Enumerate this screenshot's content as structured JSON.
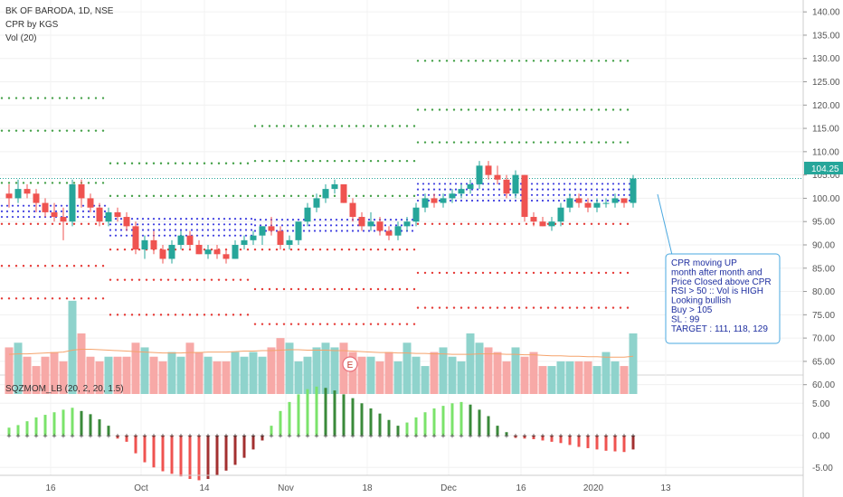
{
  "header": {
    "symbol": "BK OF BARODA, 1D, NSE",
    "indicator_1": "CPR by KGS",
    "indicator_2": "Vol (20)",
    "indicator_3": "SQZMOM_LB (20, 2, 20, 1.5)"
  },
  "price_tag": {
    "value": "104.25",
    "color": "#26a69a"
  },
  "earnings_badge": "E",
  "annotation": {
    "lines": [
      "CPR moving UP",
      "month after month and",
      "Price Closed above CPR",
      "RSI > 50 :: Vol is HIGH",
      "Looking  bullish",
      "Buy > 105",
      "SL : 99",
      "TARGET : 111, 118, 129"
    ]
  },
  "colors": {
    "up": "#26a69a",
    "down": "#ef5350",
    "vol_up": "#8fd3cc",
    "vol_down": "#f7a9a7",
    "resistance": "#43a047",
    "support": "#e53935",
    "cpr": "#3f3fe0",
    "volume_ma": "#f5a36c",
    "mom_light_green": "#7be36b",
    "mom_dark_green": "#3a8a3a",
    "mom_light_red": "#ef5350",
    "mom_dark_red": "#a33030",
    "annotation_border": "#4aa8e0"
  },
  "chart_data": [
    {
      "type": "candlestick",
      "title": "BK OF BARODA, 1D, NSE",
      "ylim": [
        58,
        141
      ],
      "y_ticks": [
        "60.00",
        "65.00",
        "70.00",
        "75.00",
        "80.00",
        "85.00",
        "90.00",
        "95.00",
        "100.00",
        "105.00",
        "110.00",
        "115.00",
        "120.00",
        "125.00",
        "130.00",
        "135.00",
        "140.00"
      ],
      "x_tick_labels": [
        "16",
        "Oct",
        "14",
        "Nov",
        "18",
        "Dec",
        "16",
        "2020",
        "13"
      ],
      "x_tick_index": [
        2,
        12,
        19,
        28,
        37,
        46,
        54,
        62,
        70
      ],
      "last_close_line": 104.25,
      "candles": [
        [
          101,
          103,
          98,
          100
        ],
        [
          100,
          104,
          99,
          102
        ],
        [
          102,
          103,
          100,
          101
        ],
        [
          101,
          102,
          97,
          99
        ],
        [
          99,
          100,
          96,
          97
        ],
        [
          97,
          99,
          95,
          96
        ],
        [
          96,
          98,
          91,
          95
        ],
        [
          95,
          104,
          94,
          103
        ],
        [
          103,
          104,
          98,
          100
        ],
        [
          100,
          101,
          97,
          98
        ],
        [
          98,
          99,
          94,
          95
        ],
        [
          95,
          98,
          94,
          97
        ],
        [
          97,
          98,
          95,
          96
        ],
        [
          96,
          97,
          93,
          94
        ],
        [
          94,
          95,
          88,
          89
        ],
        [
          89,
          92,
          87,
          91
        ],
        [
          91,
          93,
          88,
          89
        ],
        [
          89,
          90,
          86,
          87
        ],
        [
          87,
          91,
          86,
          90
        ],
        [
          90,
          93,
          89,
          92
        ],
        [
          92,
          93,
          89,
          90
        ],
        [
          90,
          91,
          88,
          88
        ],
        [
          88,
          90,
          87,
          89
        ],
        [
          89,
          90,
          87,
          88
        ],
        [
          88,
          89,
          86,
          87
        ],
        [
          87,
          91,
          87,
          90
        ],
        [
          90,
          92,
          89,
          91
        ],
        [
          91,
          93,
          90,
          92
        ],
        [
          92,
          94,
          90,
          94
        ],
        [
          94,
          96,
          92,
          93
        ],
        [
          93,
          94,
          89,
          90
        ],
        [
          90,
          92,
          89,
          91
        ],
        [
          91,
          95,
          90,
          95
        ],
        [
          95,
          99,
          94,
          98
        ],
        [
          98,
          101,
          97,
          100
        ],
        [
          100,
          103,
          99,
          102
        ],
        [
          102,
          104,
          101,
          103
        ],
        [
          103,
          103,
          99,
          99
        ],
        [
          99,
          100,
          95,
          96
        ],
        [
          96,
          97,
          93,
          94
        ],
        [
          94,
          97,
          93,
          95
        ],
        [
          95,
          96,
          92,
          93
        ],
        [
          93,
          94,
          91,
          92
        ],
        [
          92,
          95,
          91,
          94
        ],
        [
          94,
          96,
          93,
          95
        ],
        [
          95,
          99,
          94,
          98
        ],
        [
          98,
          101,
          97,
          100
        ],
        [
          100,
          101,
          98,
          99
        ],
        [
          99,
          101,
          98,
          100
        ],
        [
          100,
          102,
          99,
          101
        ],
        [
          101,
          103,
          100,
          102
        ],
        [
          102,
          104,
          101,
          103
        ],
        [
          103,
          108,
          102,
          107
        ],
        [
          107,
          108,
          104,
          105
        ],
        [
          105,
          107,
          103,
          104
        ],
        [
          104,
          105,
          100,
          101
        ],
        [
          101,
          106,
          100,
          105
        ],
        [
          105,
          105,
          95,
          96
        ],
        [
          96,
          97,
          94,
          95
        ],
        [
          95,
          96,
          94,
          94
        ],
        [
          94,
          96,
          93,
          95
        ],
        [
          95,
          99,
          94,
          98
        ],
        [
          98,
          101,
          97,
          100
        ],
        [
          100,
          101,
          98,
          99
        ],
        [
          99,
          100,
          97,
          98
        ],
        [
          98,
          100,
          97,
          99
        ],
        [
          99,
          100,
          98,
          99
        ],
        [
          99,
          101,
          98,
          100
        ],
        [
          100,
          100,
          98,
          99
        ],
        [
          99,
          105,
          98,
          104.25
        ]
      ],
      "cpr_levels": [
        {
          "start": 0,
          "end": 12,
          "r2": 121.5,
          "r1": 114.5,
          "pivot": 103.3,
          "tc": 98.5,
          "bc": 96,
          "s1": 94.5,
          "s2": 85.5,
          "s3": 78.5
        },
        {
          "start": 12,
          "end": 28,
          "r2": "",
          "r1": 107.5,
          "pivot": 100.5,
          "tc": 96,
          "bc": 92,
          "s1": 89,
          "s2": 82.5,
          "s3": 75
        },
        {
          "start": 28,
          "end": 46,
          "r2": 115.5,
          "r1": 108,
          "pivot": 100.5,
          "tc": 96.5,
          "bc": 93,
          "s1": 89,
          "s2": 80.5,
          "s3": 73
        },
        {
          "start": 46,
          "end": 70,
          "r2": 129.5,
          "r1": 119,
          "pivot": 112,
          "tc": 104,
          "bc": 99.5,
          "s1": 94.5,
          "s2": 84,
          "s3": 76.5
        }
      ]
    },
    {
      "type": "bar",
      "title": "Vol (20)",
      "volumes": [
        68,
        69,
        66,
        64,
        66,
        67,
        65,
        78,
        71,
        66,
        65,
        66,
        66,
        66,
        69,
        68,
        66,
        65,
        67,
        66,
        69,
        67,
        66,
        65,
        65,
        67,
        66,
        67,
        66,
        68,
        70,
        69,
        65,
        66,
        68,
        69,
        68,
        69,
        67,
        66,
        66,
        65,
        67,
        65,
        69,
        66,
        64,
        67,
        68,
        66,
        65,
        71,
        69,
        68,
        67,
        65,
        68,
        66,
        67,
        64,
        64,
        65,
        65,
        65,
        65,
        64,
        67,
        65,
        64,
        71
      ],
      "volume_ma": [
        66.5,
        66.6,
        66.6,
        66.7,
        66.8,
        66.9,
        67,
        67.4,
        67.6,
        67.6,
        67.5,
        67.4,
        67.3,
        67.2,
        67.1,
        67,
        66.9,
        66.8,
        66.8,
        66.8,
        66.9,
        66.9,
        67,
        67,
        67,
        67.1,
        67.2,
        67.2,
        67.3,
        67.3,
        67.4,
        67.5,
        67.5,
        67.4,
        67.4,
        67.4,
        67.3,
        67.3,
        67.2,
        67.1,
        67,
        66.9,
        66.9,
        66.8,
        66.8,
        66.7,
        66.7,
        66.6,
        66.6,
        66.5,
        66.5,
        66.5,
        66.6,
        66.6,
        66.6,
        66.5,
        66.5,
        66.4,
        66.4,
        66.3,
        66.2,
        66.2,
        66.1,
        66.1,
        66,
        66,
        65.9,
        65.9,
        65.9,
        66.1
      ]
    },
    {
      "type": "bar",
      "title": "SQZMOM_LB (20, 2, 20, 1.5)",
      "ylim": [
        -7.5,
        8
      ],
      "y_ticks": [
        "5.00",
        "0.00",
        "-5.00"
      ],
      "values": [
        1.2,
        1.6,
        2.2,
        2.8,
        3.2,
        3.6,
        4.0,
        4.3,
        3.8,
        3.3,
        2.5,
        1.5,
        -0.5,
        -1.0,
        -2.8,
        -4.2,
        -5.0,
        -5.6,
        -6.0,
        -6.4,
        -6.8,
        -7.0,
        -6.8,
        -6.2,
        -5.5,
        -4.6,
        -3.5,
        -2.2,
        -0.8,
        1.5,
        3.8,
        5.2,
        6.4,
        7.2,
        7.6,
        7.4,
        7.0,
        6.4,
        5.8,
        5.0,
        4.2,
        3.4,
        2.4,
        1.5,
        2.0,
        2.8,
        3.6,
        4.2,
        4.6,
        5.0,
        5.2,
        4.8,
        4.0,
        3.0,
        1.5,
        0.5,
        -0.4,
        -0.5,
        -0.6,
        -0.8,
        -1.0,
        -1.2,
        -1.5,
        -1.8,
        -2.0,
        -2.2,
        -2.4,
        -2.5,
        -2.6,
        -2.2
      ]
    }
  ]
}
